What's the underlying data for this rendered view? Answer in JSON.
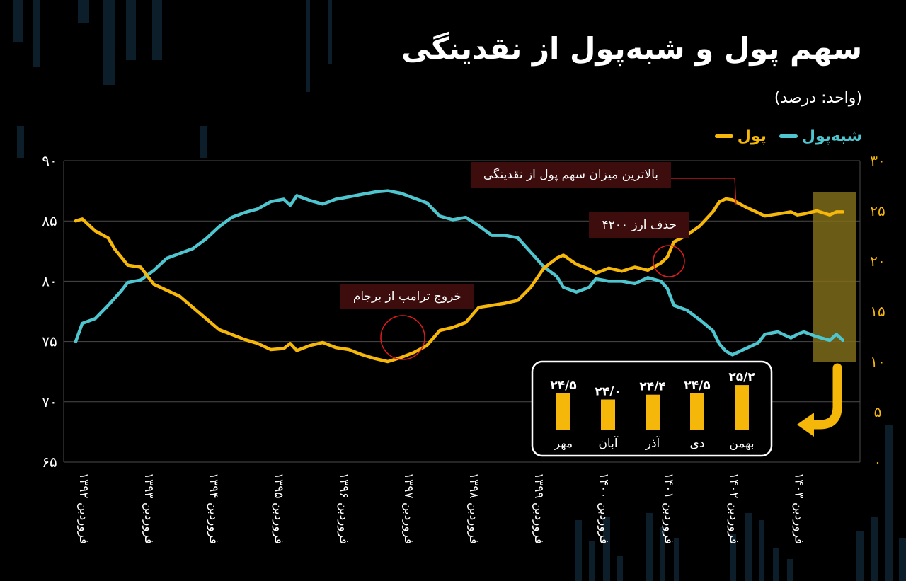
{
  "title": "سهم پول و شبه‌پول از نقدینگی",
  "unit_label": "(واحد: درصد)",
  "legend": [
    {
      "name": "شبه‌پول",
      "color": "#4fc6cf"
    },
    {
      "name": "پول",
      "color": "#f5b70a"
    }
  ],
  "colors": {
    "money": "#f5b70a",
    "quasi_money": "#4fc6cf",
    "marker": "#e01b1b",
    "highlight": "#8a7010"
  },
  "annotations": [
    {
      "id": "peak",
      "text": "بالاترین میزان سهم پول از نقدینگی"
    },
    {
      "id": "removal",
      "text": "حذف ارز ۴۲۰۰"
    },
    {
      "id": "trump",
      "text": "خروج ترامپ از برجام"
    }
  ],
  "chart_data": {
    "type": "line",
    "x_ticks": [
      "فروردین ۱۳۹۲",
      "فروردین ۱۳۹۳",
      "فروردین ۱۳۹۴",
      "فروردین ۱۳۹۵",
      "فروردین ۱۳۹۶",
      "فروردین ۱۳۹۷",
      "فروردین ۱۳۹۸",
      "فروردین ۱۳۹۹",
      "فروردین ۱۴۰۰",
      "فروردین ۱۴۰۱",
      "فروردین ۱۴۰۲",
      "فروردین ۱۴۰۳"
    ],
    "x_range": [
      1392,
      1403.9
    ],
    "left_axis": {
      "ticks": [
        "۹۰",
        "۸۵",
        "۸۰",
        "۷۵",
        "۷۰",
        "۶۵"
      ],
      "values": [
        90,
        85,
        80,
        75,
        70,
        65
      ],
      "ylim": [
        65,
        90
      ]
    },
    "right_axis": {
      "ticks": [
        "۳۰",
        "۲۵",
        "۲۰",
        "۱۵",
        "۱۰",
        "۵",
        "۰"
      ],
      "values": [
        30,
        25,
        20,
        15,
        10,
        5,
        0
      ],
      "ylim": [
        0,
        30
      ]
    },
    "grid": true,
    "series": [
      {
        "name": "شبه‌پول",
        "axis": "left",
        "color": "#4fc6cf",
        "points": [
          [
            1392.0,
            75.0
          ],
          [
            1392.1,
            76.5
          ],
          [
            1392.3,
            76.9
          ],
          [
            1392.5,
            78.0
          ],
          [
            1392.7,
            79.2
          ],
          [
            1392.8,
            79.9
          ],
          [
            1393.0,
            80.1
          ],
          [
            1393.2,
            80.9
          ],
          [
            1393.4,
            81.9
          ],
          [
            1393.6,
            82.3
          ],
          [
            1393.8,
            82.7
          ],
          [
            1394.0,
            83.5
          ],
          [
            1394.2,
            84.5
          ],
          [
            1394.4,
            85.3
          ],
          [
            1394.6,
            85.7
          ],
          [
            1394.8,
            86.0
          ],
          [
            1395.0,
            86.6
          ],
          [
            1395.2,
            86.8
          ],
          [
            1395.3,
            86.3
          ],
          [
            1395.4,
            87.1
          ],
          [
            1395.6,
            86.7
          ],
          [
            1395.8,
            86.4
          ],
          [
            1396.0,
            86.8
          ],
          [
            1396.2,
            87.0
          ],
          [
            1396.4,
            87.2
          ],
          [
            1396.6,
            87.4
          ],
          [
            1396.8,
            87.5
          ],
          [
            1397.0,
            87.3
          ],
          [
            1397.2,
            86.9
          ],
          [
            1397.4,
            86.5
          ],
          [
            1397.6,
            85.4
          ],
          [
            1397.8,
            85.1
          ],
          [
            1398.0,
            85.3
          ],
          [
            1398.2,
            84.6
          ],
          [
            1398.4,
            83.8
          ],
          [
            1398.6,
            83.8
          ],
          [
            1398.8,
            83.6
          ],
          [
            1399.0,
            82.4
          ],
          [
            1399.2,
            81.2
          ],
          [
            1399.4,
            80.4
          ],
          [
            1399.5,
            79.5
          ],
          [
            1399.7,
            79.1
          ],
          [
            1399.9,
            79.5
          ],
          [
            1400.0,
            80.2
          ],
          [
            1400.2,
            80.0
          ],
          [
            1400.4,
            80.0
          ],
          [
            1400.6,
            79.8
          ],
          [
            1400.8,
            80.3
          ],
          [
            1401.0,
            80.0
          ],
          [
            1401.1,
            79.4
          ],
          [
            1401.2,
            78.0
          ],
          [
            1401.4,
            77.6
          ],
          [
            1401.6,
            76.8
          ],
          [
            1401.8,
            75.9
          ],
          [
            1401.9,
            74.8
          ],
          [
            1402.0,
            74.2
          ],
          [
            1402.1,
            73.9
          ],
          [
            1402.3,
            74.4
          ],
          [
            1402.5,
            74.9
          ],
          [
            1402.6,
            75.6
          ],
          [
            1402.8,
            75.8
          ],
          [
            1403.0,
            75.3
          ],
          [
            1403.1,
            75.6
          ],
          [
            1403.2,
            75.8
          ],
          [
            1403.4,
            75.4
          ],
          [
            1403.6,
            75.1
          ],
          [
            1403.7,
            75.6
          ],
          [
            1403.8,
            75.1
          ]
        ]
      },
      {
        "name": "پول",
        "axis": "right",
        "color": "#f5b70a",
        "points": [
          [
            1392.0,
            24.0
          ],
          [
            1392.1,
            24.2
          ],
          [
            1392.3,
            23.0
          ],
          [
            1392.5,
            22.3
          ],
          [
            1392.6,
            21.2
          ],
          [
            1392.8,
            19.6
          ],
          [
            1393.0,
            19.4
          ],
          [
            1393.2,
            17.7
          ],
          [
            1393.4,
            17.1
          ],
          [
            1393.6,
            16.5
          ],
          [
            1393.8,
            15.4
          ],
          [
            1394.0,
            14.3
          ],
          [
            1394.2,
            13.2
          ],
          [
            1394.4,
            12.7
          ],
          [
            1394.6,
            12.2
          ],
          [
            1394.8,
            11.8
          ],
          [
            1395.0,
            11.2
          ],
          [
            1395.2,
            11.3
          ],
          [
            1395.3,
            11.8
          ],
          [
            1395.4,
            11.1
          ],
          [
            1395.6,
            11.6
          ],
          [
            1395.8,
            11.9
          ],
          [
            1396.0,
            11.4
          ],
          [
            1396.2,
            11.2
          ],
          [
            1396.4,
            10.7
          ],
          [
            1396.6,
            10.3
          ],
          [
            1396.8,
            10.0
          ],
          [
            1397.0,
            10.4
          ],
          [
            1397.2,
            10.9
          ],
          [
            1397.4,
            11.6
          ],
          [
            1397.6,
            13.1
          ],
          [
            1397.8,
            13.4
          ],
          [
            1398.0,
            13.9
          ],
          [
            1398.2,
            15.4
          ],
          [
            1398.4,
            15.6
          ],
          [
            1398.6,
            15.8
          ],
          [
            1398.8,
            16.1
          ],
          [
            1399.0,
            17.4
          ],
          [
            1399.2,
            19.3
          ],
          [
            1399.4,
            20.3
          ],
          [
            1399.5,
            20.6
          ],
          [
            1399.7,
            19.7
          ],
          [
            1399.9,
            19.2
          ],
          [
            1400.0,
            18.8
          ],
          [
            1400.2,
            19.3
          ],
          [
            1400.4,
            19.0
          ],
          [
            1400.6,
            19.4
          ],
          [
            1400.8,
            19.1
          ],
          [
            1401.0,
            19.8
          ],
          [
            1401.1,
            20.4
          ],
          [
            1401.2,
            21.9
          ],
          [
            1401.4,
            22.6
          ],
          [
            1401.6,
            23.5
          ],
          [
            1401.8,
            24.9
          ],
          [
            1401.9,
            25.9
          ],
          [
            1402.0,
            26.2
          ],
          [
            1402.1,
            26.1
          ],
          [
            1402.3,
            25.4
          ],
          [
            1402.5,
            24.8
          ],
          [
            1402.6,
            24.5
          ],
          [
            1402.8,
            24.7
          ],
          [
            1403.0,
            24.9
          ],
          [
            1403.1,
            24.6
          ],
          [
            1403.2,
            24.7
          ],
          [
            1403.4,
            25.0
          ],
          [
            1403.6,
            24.6
          ],
          [
            1403.7,
            24.9
          ],
          [
            1403.8,
            24.9
          ]
        ]
      }
    ],
    "inset": {
      "type": "bar",
      "categories": [
        "مهر",
        "آبان",
        "آذر",
        "دی",
        "بهمن"
      ],
      "labels": [
        "۲۴/۵",
        "۲۴/۰",
        "۲۴/۴",
        "۲۴/۵",
        "۲۵/۲"
      ],
      "values": [
        24.5,
        24.0,
        24.4,
        24.5,
        25.2
      ],
      "color": "#f5b70a"
    }
  }
}
